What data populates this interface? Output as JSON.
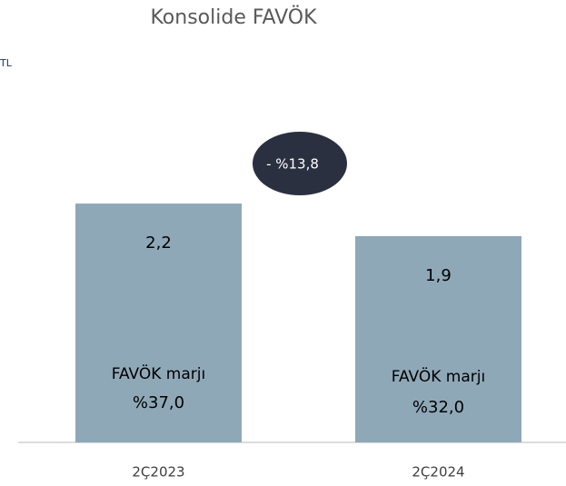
{
  "chart_data": {
    "type": "bar",
    "title": "Konsolide FAVÖK",
    "unit": "TL",
    "categories": [
      "2Ç2023",
      "2Ç2024"
    ],
    "values": [
      2.2,
      1.9
    ],
    "value_labels": [
      "2,2",
      "1,9"
    ],
    "color": "#8fa8b8",
    "margin_label": "FAVÖK marjı",
    "margins": [
      37.0,
      32.0
    ],
    "margin_labels": [
      "%37,0",
      "%32,0"
    ],
    "annotation": "- %13,8"
  }
}
